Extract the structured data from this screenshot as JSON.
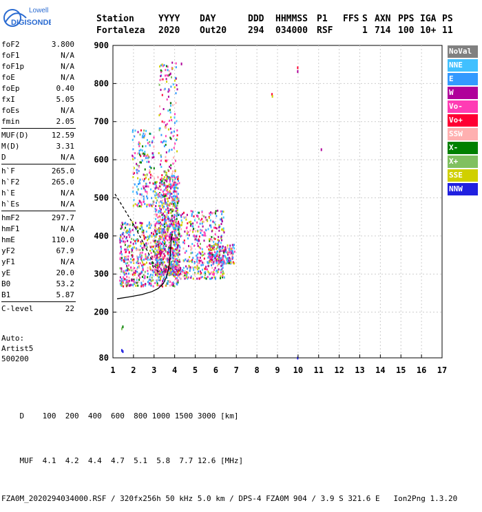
{
  "logo": {
    "line1": "Lowell",
    "line2": "DIGISONDE"
  },
  "header": {
    "labels": [
      "Station",
      "YYYY",
      "DAY",
      "DDD",
      "HHMMSS",
      "P1",
      "FFS",
      "S",
      "AXN",
      "PPS",
      "IGA",
      "PS"
    ],
    "values": [
      "Fortaleza",
      "2020",
      "Out20",
      "294",
      "034000",
      "RSF",
      "",
      "1",
      "714",
      "100",
      "10+",
      "11"
    ]
  },
  "params": [
    {
      "label": "foF2",
      "value": "3.800"
    },
    {
      "label": "foF1",
      "value": "N/A"
    },
    {
      "label": "foF1p",
      "value": "N/A"
    },
    {
      "label": "foE",
      "value": "N/A"
    },
    {
      "label": "foEp",
      "value": "0.40"
    },
    {
      "label": "fxI",
      "value": "5.05"
    },
    {
      "label": "foEs",
      "value": "N/A"
    },
    {
      "label": "fmin",
      "value": "2.05"
    },
    {
      "label": "MUF(D)",
      "value": "12.59"
    },
    {
      "label": "M(D)",
      "value": "3.31"
    },
    {
      "label": "D",
      "value": "N/A"
    },
    {
      "label": "h`F",
      "value": "265.0"
    },
    {
      "label": "h`F2",
      "value": "265.0"
    },
    {
      "label": "h`E",
      "value": "N/A"
    },
    {
      "label": "h`Es",
      "value": "N/A"
    },
    {
      "label": "hmF2",
      "value": "297.7"
    },
    {
      "label": "hmF1",
      "value": "N/A"
    },
    {
      "label": "hmE",
      "value": "110.0"
    },
    {
      "label": "yF2",
      "value": "67.9"
    },
    {
      "label": "yF1",
      "value": "N/A"
    },
    {
      "label": "yE",
      "value": "20.0"
    },
    {
      "label": "B0",
      "value": "53.2"
    },
    {
      "label": "B1",
      "value": "5.87"
    },
    {
      "label": "C-level",
      "value": "22"
    }
  ],
  "auto": {
    "line1": "Auto:",
    "line2": "Artist5",
    "line3": "500200"
  },
  "legend": [
    {
      "label": "NoVal",
      "color": "#808080"
    },
    {
      "label": "NNE",
      "color": "#40c0ff"
    },
    {
      "label": "E",
      "color": "#3399ff"
    },
    {
      "label": "W",
      "color": "#b0009a"
    },
    {
      "label": "Vo-",
      "color": "#ff3cb4"
    },
    {
      "label": "Vo+",
      "color": "#ff0033"
    },
    {
      "label": "SSW",
      "color": "#ffb0b0"
    },
    {
      "label": "X-",
      "color": "#008000"
    },
    {
      "label": "X+",
      "color": "#80c060"
    },
    {
      "label": "SSE",
      "color": "#d0d000"
    },
    {
      "label": "NNW",
      "color": "#2020e0"
    }
  ],
  "footer": {
    "row1_label": "D",
    "row1_values": [
      "100",
      "200",
      "400",
      "600",
      "800",
      "1000",
      "1500",
      "3000"
    ],
    "row1_unit": "[km]",
    "row2_label": "MUF",
    "row2_values": [
      "4.1",
      "4.2",
      "4.4",
      "4.7",
      "5.1",
      "5.8",
      "7.7",
      "12.6"
    ],
    "row2_unit": "[MHz]",
    "file_line": "FZA0M_2020294034000.RSF / 320fx256h 50 kHz 5.0 km / DPS-4 FZA0M 904 / 3.9 S 321.6 E   Ion2Png 1.3.20"
  },
  "chart_data": {
    "type": "scatter",
    "title": "",
    "xlabel": "",
    "ylabel": "",
    "xlim": [
      1,
      17
    ],
    "ylim": [
      80,
      900
    ],
    "x_ticks": [
      1,
      2,
      3,
      4,
      5,
      6,
      7,
      8,
      9,
      10,
      11,
      12,
      13,
      14,
      15,
      16,
      17
    ],
    "y_ticks": [
      80,
      200,
      300,
      400,
      500,
      600,
      700,
      800,
      900
    ],
    "grid": true,
    "legend_position": "right",
    "clusters": [
      {
        "f_range": [
          1.3,
          4.2
        ],
        "h_range": [
          270,
          440
        ],
        "density": 1.0
      },
      {
        "f_range": [
          3.0,
          4.2
        ],
        "h_range": [
          300,
          560
        ],
        "density": 0.9
      },
      {
        "f_range": [
          3.2,
          4.1
        ],
        "h_range": [
          420,
          860
        ],
        "density": 0.35
      },
      {
        "f_range": [
          1.9,
          3.0
        ],
        "h_range": [
          480,
          680
        ],
        "density": 0.25
      },
      {
        "f_range": [
          4.0,
          6.4
        ],
        "h_range": [
          290,
          470
        ],
        "density": 0.6
      },
      {
        "f_range": [
          5.6,
          6.9
        ],
        "h_range": [
          330,
          380
        ],
        "density": 0.3
      }
    ],
    "sparse_points": [
      {
        "f": 1.4,
        "h": 160,
        "dir": "X+"
      },
      {
        "f": 1.45,
        "h": 165,
        "dir": "X-"
      },
      {
        "f": 1.4,
        "h": 103,
        "dir": "NNW"
      },
      {
        "f": 1.45,
        "h": 100,
        "dir": "NNW"
      },
      {
        "f": 8.7,
        "h": 775,
        "dir": "Vo+"
      },
      {
        "f": 8.72,
        "h": 770,
        "dir": "SSE"
      },
      {
        "f": 9.95,
        "h": 845,
        "dir": "Vo+"
      },
      {
        "f": 9.95,
        "h": 835,
        "dir": "W"
      },
      {
        "f": 11.1,
        "h": 630,
        "dir": "W"
      },
      {
        "f": 9.95,
        "h": 83,
        "dir": "NNW"
      },
      {
        "f": 4.3,
        "h": 855,
        "dir": "W"
      }
    ],
    "series": [
      {
        "name": "",
        "points": [
          [
            1.2,
            235
          ],
          [
            1.8,
            240
          ],
          [
            2.4,
            246
          ],
          [
            2.9,
            254
          ],
          [
            3.2,
            262
          ],
          [
            3.45,
            275
          ],
          [
            3.6,
            292
          ],
          [
            3.72,
            318
          ],
          [
            3.8,
            355
          ],
          [
            3.84,
            400
          ]
        ]
      },
      {
        "name": "",
        "points": [
          [
            1.1,
            510
          ],
          [
            1.5,
            475
          ],
          [
            2.0,
            430
          ],
          [
            2.5,
            380
          ],
          [
            2.95,
            330
          ],
          [
            3.2,
            305
          ]
        ]
      }
    ]
  }
}
